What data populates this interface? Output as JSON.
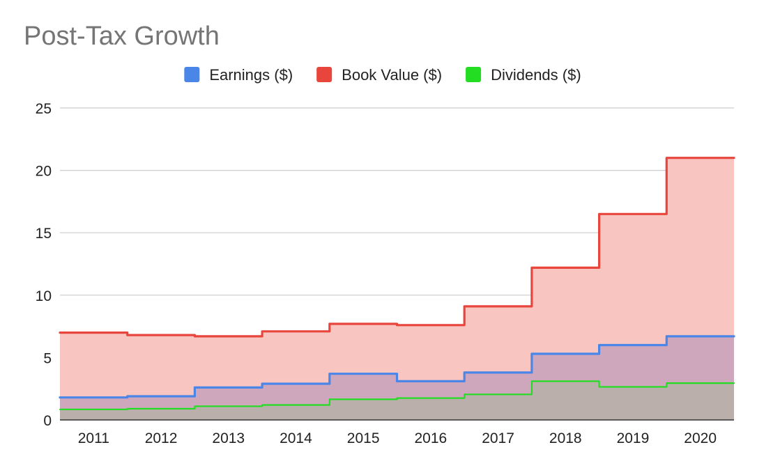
{
  "chart_data": {
    "type": "area",
    "step": true,
    "title": "Post-Tax Growth",
    "xlabel": "",
    "ylabel": "",
    "categories": [
      "2011",
      "2012",
      "2013",
      "2014",
      "2015",
      "2016",
      "2017",
      "2018",
      "2019",
      "2020"
    ],
    "ylim": [
      0,
      25
    ],
    "yticks": [
      0,
      5,
      10,
      15,
      20,
      25
    ],
    "grid": true,
    "legend_position": "top",
    "series": [
      {
        "name": "Book Value ($)",
        "color": "#e8453c",
        "fill": "#f8c5c0",
        "values": [
          7.0,
          6.8,
          6.7,
          7.1,
          7.7,
          7.6,
          9.1,
          12.2,
          16.5,
          21.0
        ]
      },
      {
        "name": "Earnings ($)",
        "color": "#4a86e8",
        "fill": "#cfa7bd",
        "values": [
          1.8,
          1.9,
          2.6,
          2.9,
          3.7,
          3.1,
          3.8,
          5.3,
          6.0,
          6.7
        ]
      },
      {
        "name": "Dividends ($)",
        "color": "#22dd22",
        "fill": "#bbafab",
        "values": [
          0.85,
          0.9,
          1.1,
          1.2,
          1.65,
          1.75,
          2.05,
          3.1,
          2.65,
          2.95
        ]
      }
    ],
    "legend_order": [
      "Earnings ($)",
      "Book Value ($)",
      "Dividends ($)"
    ]
  }
}
